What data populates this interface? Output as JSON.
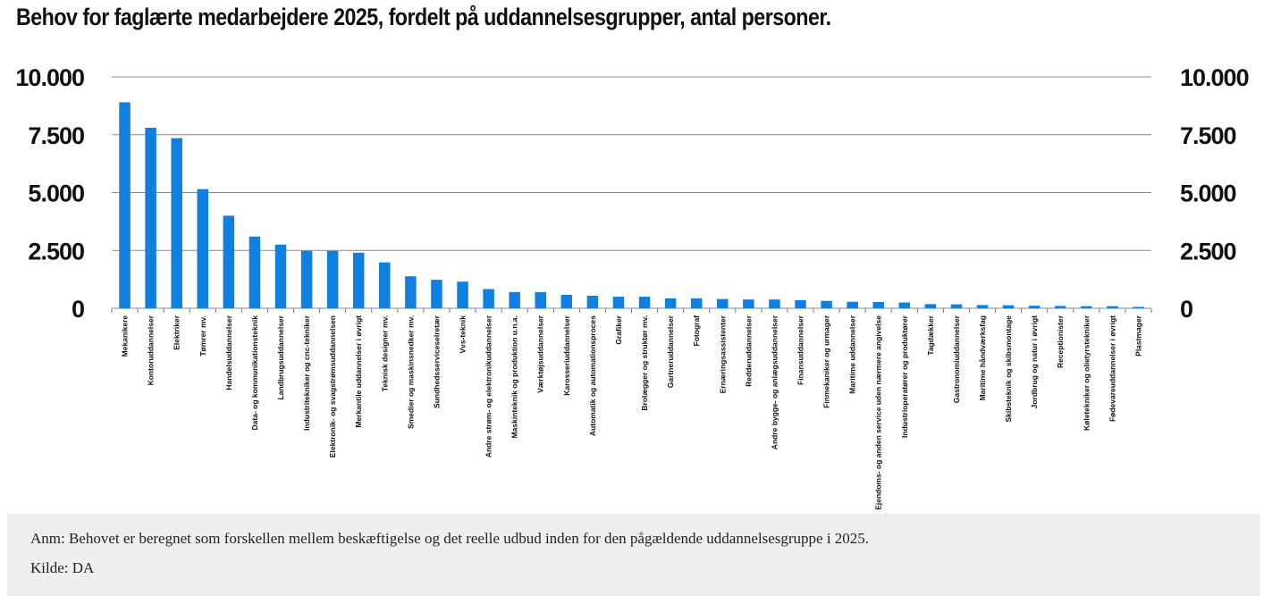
{
  "chart_data": {
    "type": "bar",
    "title": "Behov for faglærte medarbejdere 2025, fordelt på uddannelsesgrupper, antal personer.",
    "categories": [
      "Mekanikere",
      "Kontoruddannelser",
      "Elektriker",
      "Tømrer mv.",
      "Handelsuddannelser",
      "Data- og kommunikationsteknik",
      "Landbrugsuddannelser",
      "Industritekniker og cnc-tekniker",
      "Elektronik- og svagstrømsuddannelsen",
      "Merkantile uddannelser i øvrigt",
      "Teknisk designer mv.",
      "Smedier og maskinsnedker mv.",
      "Sundhedsserviceselretær",
      "Vvs-teknik",
      "Andre strøm- og elektronikuddannelser",
      "Maskinteknik og produktion u.n.a.",
      "Værktøjsuddannelser",
      "Karosseriuddannelser",
      "Automatik og automationsproces",
      "Grafiker",
      "Brolægger og struktør mv.",
      "Gartneruddannelser",
      "Fotograf",
      "Ernæringsassistenter",
      "Redderuddannelser",
      "Andre bygge- og anlægsuddannelser",
      "Finansuddannelser",
      "Finmekaniker og urmager",
      "Maritime uddannelser",
      "Ejendoms- og anden service uden nærmere angivelse",
      "Industrioperatører og produktører",
      "Tagdækker",
      "Gastronomiuddannelser",
      "Maritime håndværksfag",
      "Skibsteknik og skibsmontage",
      "Jordbrug og natur i øvrigt",
      "Receptionister",
      "Køletekniker og olietyrstekniker",
      "Fødevareuddannelser i øvrigt",
      "Plastmager"
    ],
    "values": [
      8900,
      7800,
      7350,
      5150,
      4000,
      3100,
      2750,
      2480,
      2480,
      2400,
      1980,
      1380,
      1230,
      1150,
      830,
      700,
      700,
      580,
      540,
      500,
      500,
      430,
      430,
      400,
      380,
      380,
      350,
      320,
      280,
      270,
      250,
      180,
      170,
      140,
      130,
      110,
      100,
      90,
      90,
      60
    ],
    "ylim": [
      0,
      10000
    ],
    "yticks": [
      0,
      2500,
      5000,
      7500,
      10000
    ],
    "ytick_labels": [
      "0",
      "2.500",
      "5.000",
      "7.500",
      "10.000"
    ],
    "grid": true,
    "secondary_axis": true,
    "bar_color": "#0f7fe0"
  },
  "notes": {
    "anm": "Anm:  Behovet er beregnet som forskellen mellem beskæftigelse og det reelle udbud inden for den pågældende uddannelsesgruppe i 2025.",
    "kilde": "Kilde: DA"
  }
}
